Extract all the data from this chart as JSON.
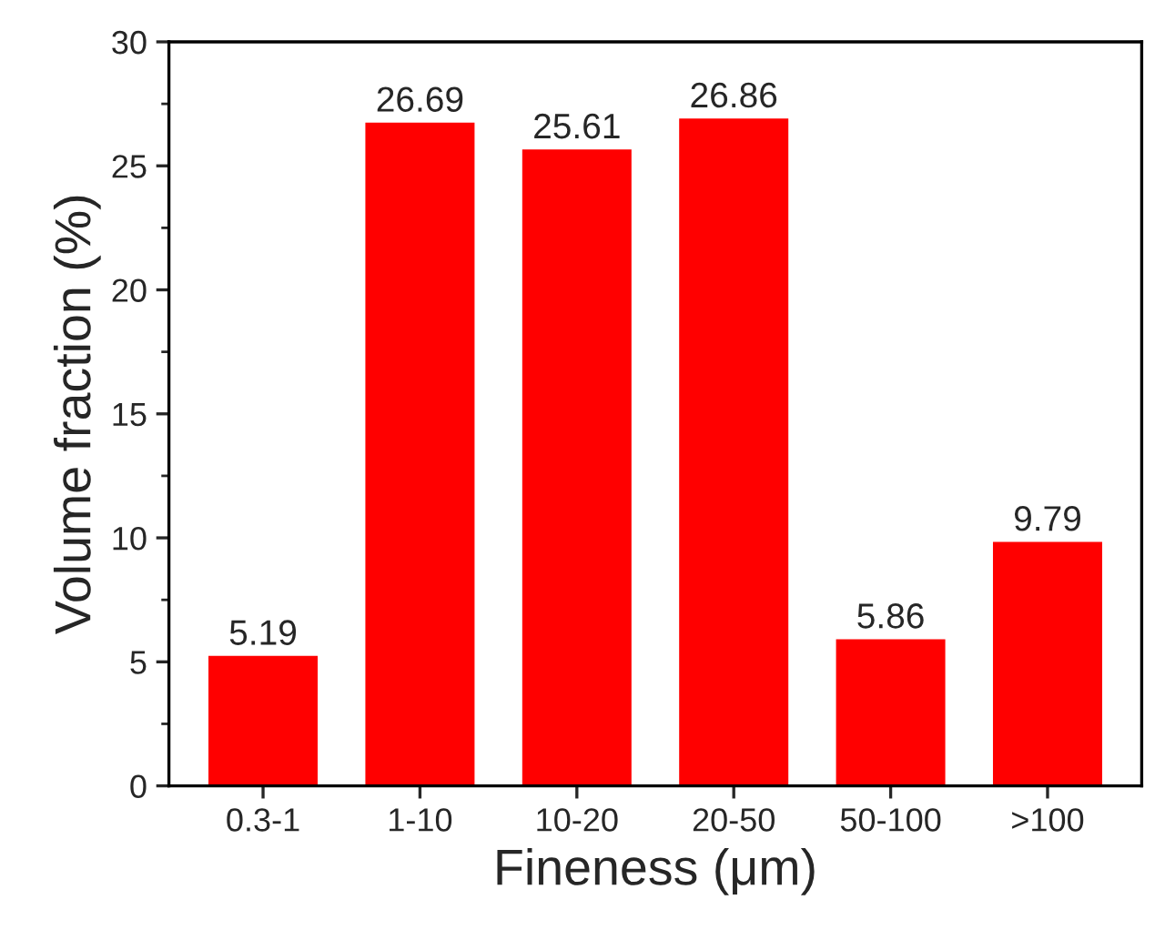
{
  "chart_data": {
    "type": "bar",
    "xlabel": "Fineness (μm)",
    "ylabel": "Volume fraction (%)",
    "categories": [
      "0.3-1",
      "1-10",
      "10-20",
      "20-50",
      "50-100",
      ">100"
    ],
    "values": [
      5.19,
      26.69,
      25.61,
      26.86,
      5.86,
      9.79
    ],
    "color": "#ff0000",
    "data_labels": true,
    "ylim": [
      0,
      30
    ],
    "yticks": [
      0,
      5,
      10,
      15,
      20,
      25,
      30
    ],
    "grid": false,
    "legend": false
  }
}
